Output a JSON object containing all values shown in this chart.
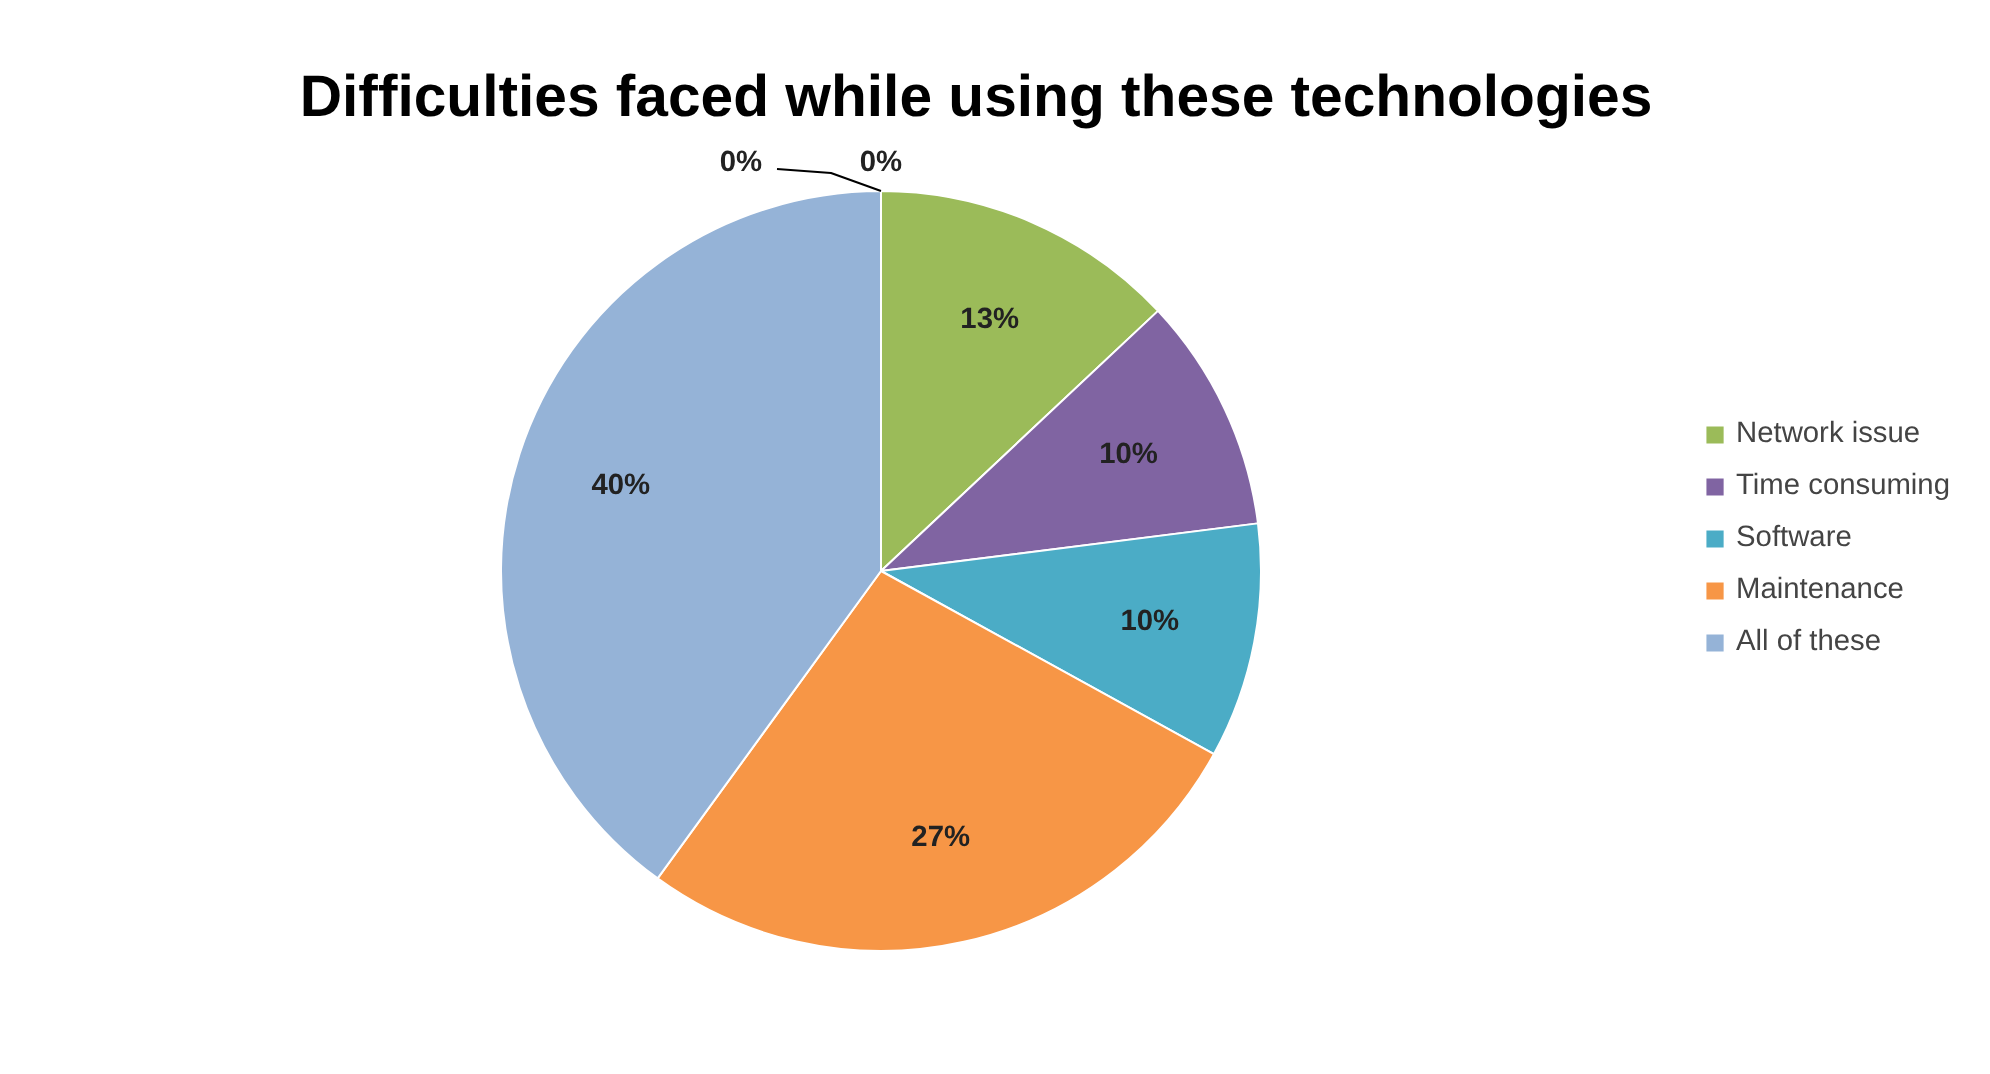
{
  "chart_data": {
    "type": "pie",
    "title": "Difficulties faced while using these technologies",
    "categories": [
      "Network issue",
      "Time consuming",
      "Software",
      "Maintenance",
      "All of these",
      null,
      null
    ],
    "values": [
      13,
      10,
      10,
      27,
      40,
      0,
      0
    ],
    "value_labels": [
      "13%",
      "10%",
      "10%",
      "27%",
      "40%",
      "0%",
      "0%"
    ],
    "colors": [
      "#9bbb59",
      "#8064a2",
      "#4bacc6",
      "#f79646",
      "#95b3d7",
      "#4f81bd",
      "#c0504d"
    ],
    "legend": "right"
  }
}
